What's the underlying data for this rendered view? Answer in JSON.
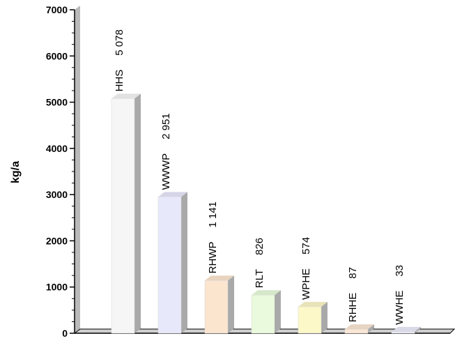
{
  "chart_data": {
    "type": "bar",
    "title": "",
    "xlabel": "",
    "ylabel": "kg/a",
    "ylim": [
      0,
      7000
    ],
    "y_ticks": [
      0,
      1000,
      2000,
      3000,
      4000,
      5000,
      6000,
      7000
    ],
    "grid": false,
    "style": "3d",
    "categories": [
      "HHS",
      "WWWP",
      "RHWP",
      "RLT",
      "WPHE",
      "RHHE",
      "WWHE"
    ],
    "values": [
      5078,
      2951,
      1141,
      826,
      574,
      87,
      33
    ],
    "value_labels": [
      "5 078",
      "2 951",
      "1 141",
      "826",
      "574",
      "87",
      "33"
    ],
    "colors": [
      "#f6f6f6",
      "#e8e8fb",
      "#fbe5cf",
      "#e9fbdc",
      "#fcf8c8",
      "#fbe6d3",
      "#ececfb"
    ]
  }
}
